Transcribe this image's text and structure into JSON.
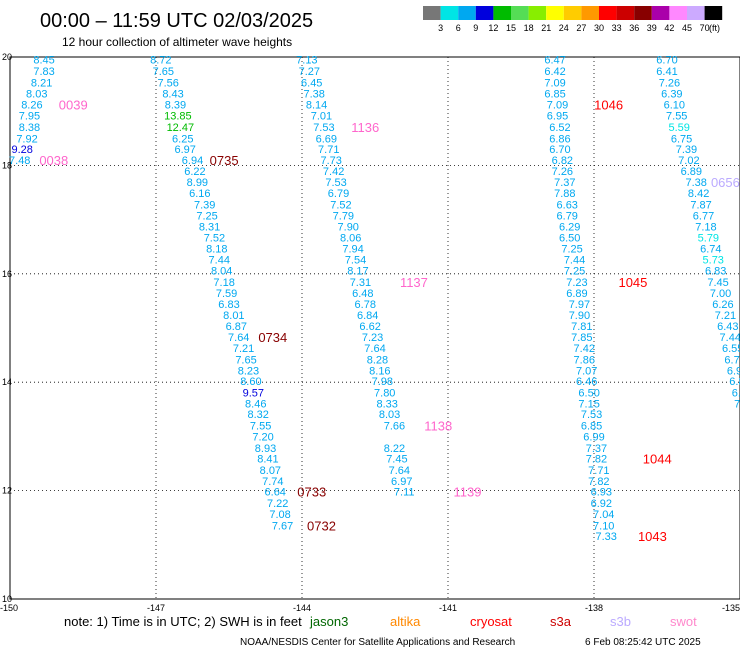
{
  "title": "00:00 – 11:59 UTC 02/03/2025",
  "subtitle": "12 hour collection of altimeter wave heights",
  "footer_note": "note: 1) Time is in UTC; 2) SWH is in feet",
  "credit": "NOAA/NESDIS Center for Satellite Applications and Research",
  "timestamp": "6 Feb 08:25:42 UTC 2025",
  "legend": {
    "unit": "(ft)",
    "ticks": [
      "3",
      "6",
      "9",
      "12",
      "15",
      "18",
      "21",
      "24",
      "27",
      "30",
      "33",
      "36",
      "39",
      "42",
      "45",
      "70"
    ],
    "colors": [
      "#777777",
      "#00e5e5",
      "#00a8f0",
      "#0000dd",
      "#00bb00",
      "#55dd55",
      "#88ee00",
      "#ffff00",
      "#ffcc00",
      "#ff9900",
      "#ff0000",
      "#cc0000",
      "#880000",
      "#aa00aa",
      "#ff88ff",
      "#ccaaff",
      "#000000"
    ]
  },
  "satellites": [
    {
      "name": "jason3",
      "color": "#006600"
    },
    {
      "name": "altika",
      "color": "#ff8800"
    },
    {
      "name": "cryosat",
      "color": "#ff0000"
    },
    {
      "name": "s3a",
      "color": "#cc0000"
    },
    {
      "name": "s3b",
      "color": "#bbaaff"
    },
    {
      "name": "swot",
      "color": "#ff88cc"
    }
  ],
  "chart_data": {
    "type": "scatter",
    "title": "00:00 – 11:59 UTC 02/03/2025",
    "subtitle": "12 hour collection of altimeter wave heights",
    "xlabel": "",
    "ylabel": "",
    "xlim": [
      -150,
      -135
    ],
    "ylim": [
      10,
      20
    ],
    "x_ticks": [
      "-150",
      "-147",
      "-144",
      "-141",
      "-138",
      "-135"
    ],
    "y_ticks": [
      "10",
      "12",
      "14",
      "16",
      "18",
      "20"
    ],
    "grid": true,
    "unit": "ft",
    "tracks": [
      {
        "values": [
          "8.45",
          "7.83",
          "8.21",
          "8.03",
          "8.26",
          "7.95",
          "8.38",
          "7.92",
          "9.28",
          "7.48"
        ],
        "lon": [
          -149.3,
          -149.3,
          -149.35,
          -149.45,
          -149.55,
          -149.6,
          -149.6,
          -149.65,
          -149.75,
          -149.8
        ],
        "lat": [
          19.95,
          19.74,
          19.53,
          19.33,
          19.12,
          18.92,
          18.71,
          18.5,
          18.3,
          18.1
        ],
        "time_labels": [
          {
            "text": "0039",
            "lon": -148.7,
            "lat": 19.12,
            "color": "#ff66cc"
          },
          {
            "text": "0038",
            "lon": -149.1,
            "lat": 18.1,
            "color": "#ff66cc"
          }
        ]
      },
      {
        "values": [
          "8.72",
          "7.65",
          "7.56",
          "8.43",
          "8.39",
          "13.85",
          "12.47",
          "6.25",
          "6.97",
          "6.94",
          "6.22",
          "8.99",
          "6.16",
          "7.39",
          "7.25",
          "8.31",
          "7.52",
          "8.18",
          "7.44",
          "8.04",
          "7.18",
          "7.59",
          "6.83",
          "8.01",
          "6.87",
          "7.64",
          "7.21",
          "7.65",
          "8.23",
          "8.60",
          "9.57",
          "8.46",
          "8.32",
          "7.55",
          "7.20",
          "8.93",
          "8.41",
          "8.07",
          "7.74",
          "6.64",
          "7.22",
          "7.08",
          "7.67"
        ],
        "lon": [
          -146.9,
          -146.85,
          -146.75,
          -146.65,
          -146.6,
          -146.55,
          -146.5,
          -146.45,
          -146.4,
          -146.25,
          -146.2,
          -146.15,
          -146.1,
          -146.0,
          -145.95,
          -145.9,
          -145.8,
          -145.75,
          -145.7,
          -145.65,
          -145.6,
          -145.55,
          -145.5,
          -145.4,
          -145.35,
          -145.3,
          -145.2,
          -145.15,
          -145.1,
          -145.05,
          -145.0,
          -144.95,
          -144.9,
          -144.85,
          -144.8,
          -144.75,
          -144.7,
          -144.65,
          -144.6,
          -144.55,
          -144.5,
          -144.45,
          -144.4
        ],
        "lat": [
          19.95,
          19.74,
          19.53,
          19.33,
          19.12,
          18.92,
          18.71,
          18.5,
          18.3,
          18.1,
          17.9,
          17.69,
          17.49,
          17.28,
          17.08,
          16.87,
          16.67,
          16.47,
          16.26,
          16.06,
          15.85,
          15.65,
          15.44,
          15.24,
          15.04,
          14.83,
          14.63,
          14.42,
          14.22,
          14.02,
          13.81,
          13.61,
          13.41,
          13.2,
          13.0,
          12.79,
          12.59,
          12.38,
          12.18,
          11.98,
          11.77,
          11.57,
          11.36
        ],
        "time_labels": [
          {
            "text": "0735",
            "lon": -145.6,
            "lat": 18.1,
            "color": "#880000"
          },
          {
            "text": "0734",
            "lon": -144.6,
            "lat": 14.83,
            "color": "#880000"
          },
          {
            "text": "0733",
            "lon": -143.8,
            "lat": 11.98,
            "color": "#880000"
          },
          {
            "text": "0732",
            "lon": -143.6,
            "lat": 11.36,
            "color": "#880000"
          }
        ]
      },
      {
        "values": [
          "7.13",
          "7.27",
          "6.45",
          "7.38",
          "8.14",
          "7.01",
          "7.53",
          "6.69",
          "7.71",
          "7.73",
          "7.42",
          "7.53",
          "6.79",
          "7.52",
          "7.79",
          "7.90",
          "8.06",
          "7.94",
          "7.54",
          "8.17",
          "7.31",
          "6.48",
          "6.78",
          "6.84",
          "6.62",
          "7.23",
          "7.64",
          "8.28",
          "8.16",
          "7.98",
          "7.80",
          "8.33",
          "8.03",
          "7.66",
          "8.22",
          "7.45",
          "7.64",
          "6.97",
          "7.11"
        ],
        "lon": [
          -143.9,
          -143.85,
          -143.8,
          -143.75,
          -143.7,
          -143.6,
          -143.55,
          -143.5,
          -143.45,
          -143.4,
          -143.35,
          -143.3,
          -143.25,
          -143.2,
          -143.15,
          -143.05,
          -143.0,
          -142.95,
          -142.9,
          -142.85,
          -142.8,
          -142.75,
          -142.7,
          -142.65,
          -142.6,
          -142.55,
          -142.5,
          -142.45,
          -142.4,
          -142.35,
          -142.3,
          -142.25,
          -142.2,
          -142.1,
          -142.1,
          -142.05,
          -142.0,
          -141.95,
          -141.9
        ],
        "lat": [
          19.95,
          19.74,
          19.53,
          19.33,
          19.12,
          18.92,
          18.71,
          18.5,
          18.3,
          18.1,
          17.9,
          17.69,
          17.49,
          17.28,
          17.08,
          16.87,
          16.67,
          16.47,
          16.26,
          16.06,
          15.85,
          15.65,
          15.44,
          15.24,
          15.04,
          14.83,
          14.63,
          14.42,
          14.22,
          14.02,
          13.81,
          13.61,
          13.41,
          13.2,
          12.79,
          12.59,
          12.38,
          12.18,
          11.98
        ],
        "time_labels": [
          {
            "text": "1136",
            "lon": -142.7,
            "lat": 18.71,
            "color": "#ff66cc"
          },
          {
            "text": "1137",
            "lon": -141.7,
            "lat": 15.85,
            "color": "#ff66cc"
          },
          {
            "text": "1138",
            "lon": -141.2,
            "lat": 13.2,
            "color": "#ff66cc"
          },
          {
            "text": "1139",
            "lon": -140.6,
            "lat": 11.98,
            "color": "#ff66cc"
          }
        ]
      },
      {
        "values": [
          "6.47",
          "6.42",
          "7.09",
          "6.85",
          "7.09",
          "6.95",
          "6.52",
          "6.86",
          "6.70",
          "6.82",
          "7.26",
          "7.37",
          "7.88",
          "6.63",
          "6.79",
          "6.29",
          "6.50",
          "7.25",
          "7.44",
          "7.25",
          "7.23",
          "6.89",
          "7.97",
          "7.90",
          "7.81",
          "7.85",
          "7.42",
          "7.86",
          "7.07",
          "6.46",
          "6.50",
          "7.15",
          "7.53",
          "6.85",
          "6.99",
          "7.37",
          "7.82",
          "7.71",
          "7.82",
          "6.93",
          "6.92",
          "7.04",
          "7.10",
          "7.33"
        ],
        "lon": [
          -138.8,
          -138.8,
          -138.8,
          -138.8,
          -138.75,
          -138.75,
          -138.7,
          -138.7,
          -138.7,
          -138.65,
          -138.65,
          -138.6,
          -138.6,
          -138.55,
          -138.55,
          -138.5,
          -138.5,
          -138.45,
          -138.4,
          -138.4,
          -138.35,
          -138.35,
          -138.3,
          -138.3,
          -138.25,
          -138.25,
          -138.2,
          -138.2,
          -138.15,
          -138.15,
          -138.1,
          -138.1,
          -138.05,
          -138.05,
          -138.0,
          -137.95,
          -137.95,
          -137.9,
          -137.9,
          -137.85,
          -137.85,
          -137.8,
          -137.8,
          -137.75
        ],
        "lat": [
          19.95,
          19.74,
          19.53,
          19.33,
          19.12,
          18.92,
          18.71,
          18.5,
          18.3,
          18.1,
          17.9,
          17.69,
          17.49,
          17.28,
          17.08,
          16.87,
          16.67,
          16.47,
          16.26,
          16.06,
          15.85,
          15.65,
          15.44,
          15.24,
          15.04,
          14.83,
          14.63,
          14.42,
          14.22,
          14.02,
          13.81,
          13.61,
          13.41,
          13.2,
          13.0,
          12.79,
          12.59,
          12.38,
          12.18,
          11.98,
          11.77,
          11.57,
          11.36,
          11.16
        ],
        "time_labels": [
          {
            "text": "1046",
            "lon": -137.7,
            "lat": 19.12,
            "color": "#ff0000"
          },
          {
            "text": "1045",
            "lon": -137.2,
            "lat": 15.85,
            "color": "#ff0000"
          },
          {
            "text": "1044",
            "lon": -136.7,
            "lat": 12.59,
            "color": "#ff0000"
          },
          {
            "text": "1043",
            "lon": -136.8,
            "lat": 11.16,
            "color": "#ff0000"
          }
        ]
      },
      {
        "values": [
          "6.70",
          "6.41",
          "7.26",
          "6.39",
          "6.10",
          "7.55",
          "5.59",
          "6.75",
          "7.39",
          "7.02",
          "6.89",
          "7.38",
          "8.42",
          "7.87",
          "6.77",
          "7.18",
          "5.79",
          "6.74",
          "5.73",
          "6.83",
          "7.45",
          "7.00",
          "6.26",
          "7.21",
          "6.43",
          "7.44",
          "6.55",
          "6.76",
          "6.94",
          "6.84",
          "6.48",
          "7.26",
          "7.7",
          "5.5",
          "6.9",
          "7.",
          "9"
        ],
        "lon": [
          -136.5,
          -136.5,
          -136.45,
          -136.4,
          -136.35,
          -136.3,
          -136.25,
          -136.2,
          -136.1,
          -136.05,
          -136.0,
          -135.9,
          -135.85,
          -135.8,
          -135.75,
          -135.7,
          -135.65,
          -135.6,
          -135.55,
          -135.5,
          -135.45,
          -135.4,
          -135.35,
          -135.3,
          -135.25,
          -135.2,
          -135.15,
          -135.1,
          -135.05,
          -135.0,
          -134.95,
          -134.9,
          -134.85,
          -134.8,
          -134.75,
          -134.7,
          -134.65
        ],
        "lat": [
          19.95,
          19.74,
          19.53,
          19.33,
          19.12,
          18.92,
          18.71,
          18.5,
          18.3,
          18.1,
          17.9,
          17.69,
          17.49,
          17.28,
          17.08,
          16.87,
          16.67,
          16.47,
          16.26,
          16.06,
          15.85,
          15.65,
          15.44,
          15.24,
          15.04,
          14.83,
          14.63,
          14.42,
          14.22,
          14.02,
          13.81,
          13.61,
          13.41,
          13.2,
          13.0,
          12.79,
          12.59
        ],
        "time_labels": [
          {
            "text": "0656",
            "lon": -135.3,
            "lat": 17.69,
            "color": "#bbaaff"
          }
        ]
      }
    ]
  }
}
